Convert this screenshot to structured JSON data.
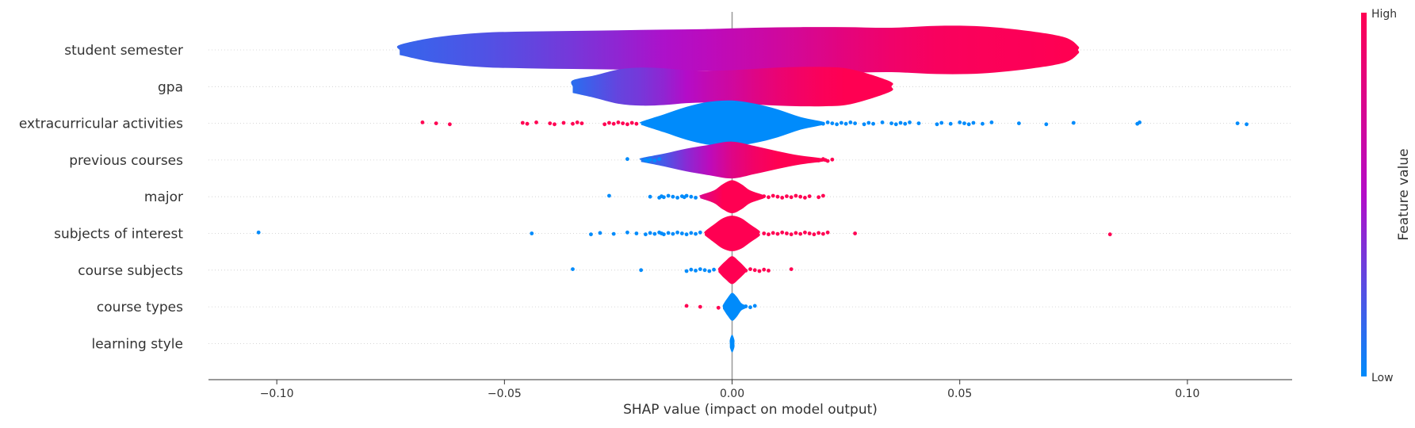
{
  "chart_data": {
    "type": "scatter",
    "variant": "shap-violin-summary",
    "title": "",
    "xlabel": "SHAP value (impact on model output)",
    "xlim": [
      -0.115,
      0.123
    ],
    "xticks": [
      -0.1,
      -0.05,
      0.0,
      0.05,
      0.1
    ],
    "xtick_labels": [
      "−0.10",
      "−0.05",
      "0.00",
      "0.05",
      "0.10"
    ],
    "zero_line": 0.0,
    "colorbar": {
      "label": "Feature value",
      "high_label": "High",
      "low_label": "Low",
      "low_color": "#008bfb",
      "high_color": "#ff0052"
    },
    "features": [
      {
        "name": "student semester",
        "kind": "violin",
        "violin": [
          [
            -0.073,
            0.4,
            0.15
          ],
          [
            -0.065,
            1.0,
            0.18
          ],
          [
            -0.055,
            1.35,
            0.22
          ],
          [
            -0.045,
            1.45,
            0.27
          ],
          [
            -0.035,
            1.5,
            0.33
          ],
          [
            -0.025,
            1.55,
            0.4
          ],
          [
            -0.015,
            1.6,
            0.48
          ],
          [
            -0.005,
            1.65,
            0.55
          ],
          [
            0.005,
            1.75,
            0.63
          ],
          [
            0.015,
            1.8,
            0.72
          ],
          [
            0.025,
            1.8,
            0.82
          ],
          [
            0.035,
            1.75,
            0.9
          ],
          [
            0.045,
            1.9,
            0.95
          ],
          [
            0.055,
            1.85,
            0.97
          ],
          [
            0.065,
            1.5,
            0.98
          ],
          [
            0.073,
            1.0,
            1.0
          ],
          [
            0.076,
            0.3,
            1.0
          ]
        ],
        "dots": []
      },
      {
        "name": "gpa",
        "kind": "violin",
        "violin": [
          [
            -0.035,
            0.5,
            0.12
          ],
          [
            -0.03,
            0.9,
            0.2
          ],
          [
            -0.025,
            1.35,
            0.28
          ],
          [
            -0.02,
            1.5,
            0.33
          ],
          [
            -0.015,
            1.45,
            0.4
          ],
          [
            -0.01,
            1.3,
            0.5
          ],
          [
            -0.005,
            1.25,
            0.6
          ],
          [
            0.0,
            1.3,
            0.68
          ],
          [
            0.005,
            1.4,
            0.78
          ],
          [
            0.01,
            1.5,
            0.86
          ],
          [
            0.015,
            1.55,
            0.92
          ],
          [
            0.02,
            1.55,
            0.97
          ],
          [
            0.025,
            1.45,
            1.0
          ],
          [
            0.03,
            1.0,
            1.0
          ],
          [
            0.035,
            0.35,
            1.0
          ]
        ],
        "dots": []
      },
      {
        "name": "extracurricular activities",
        "kind": "violin",
        "violin": [
          [
            -0.02,
            0.12,
            0.0
          ],
          [
            -0.015,
            0.7,
            0.0
          ],
          [
            -0.01,
            1.3,
            0.0
          ],
          [
            -0.005,
            1.7,
            0.0
          ],
          [
            0.0,
            1.8,
            0.0
          ],
          [
            0.005,
            1.55,
            0.0
          ],
          [
            0.01,
            1.1,
            0.0
          ],
          [
            0.015,
            0.5,
            0.0
          ],
          [
            0.02,
            0.12,
            0.0
          ]
        ],
        "dots": [
          [
            -0.068,
            1
          ],
          [
            -0.065,
            1
          ],
          [
            -0.062,
            1
          ],
          [
            -0.046,
            1
          ],
          [
            -0.045,
            1
          ],
          [
            -0.043,
            1
          ],
          [
            -0.04,
            1
          ],
          [
            -0.039,
            1
          ],
          [
            -0.037,
            1
          ],
          [
            -0.035,
            1
          ],
          [
            -0.034,
            1
          ],
          [
            -0.033,
            1
          ],
          [
            -0.028,
            1
          ],
          [
            -0.027,
            1
          ],
          [
            -0.026,
            1
          ],
          [
            -0.025,
            1
          ],
          [
            -0.024,
            1
          ],
          [
            -0.023,
            1
          ],
          [
            -0.022,
            1
          ],
          [
            -0.021,
            1
          ],
          [
            0.016,
            0
          ],
          [
            0.017,
            0
          ],
          [
            0.018,
            0
          ],
          [
            0.019,
            0
          ],
          [
            0.02,
            0
          ],
          [
            0.021,
            0
          ],
          [
            0.022,
            0
          ],
          [
            0.023,
            0
          ],
          [
            0.024,
            0
          ],
          [
            0.025,
            0
          ],
          [
            0.026,
            0
          ],
          [
            0.027,
            0
          ],
          [
            0.029,
            0
          ],
          [
            0.03,
            0
          ],
          [
            0.031,
            0
          ],
          [
            0.033,
            0
          ],
          [
            0.035,
            0
          ],
          [
            0.036,
            0
          ],
          [
            0.037,
            0
          ],
          [
            0.038,
            0
          ],
          [
            0.039,
            0
          ],
          [
            0.041,
            0
          ],
          [
            0.045,
            0
          ],
          [
            0.046,
            0
          ],
          [
            0.048,
            0
          ],
          [
            0.05,
            0
          ],
          [
            0.051,
            0
          ],
          [
            0.052,
            0
          ],
          [
            0.053,
            0
          ],
          [
            0.055,
            0
          ],
          [
            0.057,
            0
          ],
          [
            0.063,
            0
          ],
          [
            0.069,
            0
          ],
          [
            0.075,
            0
          ],
          [
            0.089,
            0
          ],
          [
            0.0895,
            0
          ],
          [
            0.111,
            0
          ],
          [
            0.113,
            0
          ]
        ]
      },
      {
        "name": "previous courses",
        "kind": "violin",
        "violin": [
          [
            -0.02,
            0.15,
            0.08
          ],
          [
            -0.015,
            0.5,
            0.2
          ],
          [
            -0.01,
            0.9,
            0.38
          ],
          [
            -0.005,
            1.2,
            0.55
          ],
          [
            0.0,
            1.45,
            0.78
          ],
          [
            0.005,
            1.1,
            0.92
          ],
          [
            0.01,
            0.7,
            1.0
          ],
          [
            0.015,
            0.35,
            1.0
          ],
          [
            0.02,
            0.12,
            1.0
          ]
        ],
        "dots": [
          [
            -0.023,
            0
          ],
          [
            -0.019,
            0
          ],
          [
            -0.0185,
            0
          ],
          [
            -0.018,
            0
          ],
          [
            -0.017,
            0
          ],
          [
            -0.016,
            0
          ],
          [
            0.016,
            1
          ],
          [
            0.017,
            1
          ],
          [
            0.018,
            1
          ],
          [
            0.019,
            1
          ],
          [
            0.02,
            1
          ],
          [
            0.0205,
            1
          ],
          [
            0.021,
            1
          ],
          [
            0.022,
            1
          ]
        ]
      },
      {
        "name": "major",
        "kind": "violin",
        "violin": [
          [
            -0.007,
            0.12,
            0.75
          ],
          [
            -0.004,
            0.5,
            0.9
          ],
          [
            -0.002,
            1.0,
            1.0
          ],
          [
            0.0,
            1.3,
            1.0
          ],
          [
            0.002,
            1.0,
            1.0
          ],
          [
            0.004,
            0.5,
            1.0
          ],
          [
            0.007,
            0.12,
            1.0
          ]
        ],
        "dots": [
          [
            -0.027,
            0
          ],
          [
            -0.018,
            0
          ],
          [
            -0.016,
            0
          ],
          [
            -0.0155,
            0
          ],
          [
            -0.015,
            0
          ],
          [
            -0.014,
            0
          ],
          [
            -0.013,
            0
          ],
          [
            -0.012,
            0
          ],
          [
            -0.011,
            0
          ],
          [
            -0.0105,
            0
          ],
          [
            -0.01,
            0
          ],
          [
            -0.009,
            0
          ],
          [
            -0.008,
            0
          ],
          [
            0.007,
            1
          ],
          [
            0.008,
            1
          ],
          [
            0.009,
            1
          ],
          [
            0.01,
            1
          ],
          [
            0.011,
            1
          ],
          [
            0.012,
            1
          ],
          [
            0.013,
            1
          ],
          [
            0.014,
            1
          ],
          [
            0.015,
            1
          ],
          [
            0.016,
            1
          ],
          [
            0.017,
            1
          ],
          [
            0.019,
            1
          ],
          [
            0.02,
            1
          ]
        ]
      },
      {
        "name": "subjects of interest",
        "kind": "violin",
        "violin": [
          [
            -0.006,
            0.15,
            1.0
          ],
          [
            -0.004,
            0.7,
            1.0
          ],
          [
            -0.002,
            1.2,
            1.0
          ],
          [
            0.0,
            1.4,
            1.0
          ],
          [
            0.002,
            1.2,
            1.0
          ],
          [
            0.004,
            0.7,
            1.0
          ],
          [
            0.006,
            0.2,
            1.0
          ]
        ],
        "dots": [
          [
            -0.104,
            0
          ],
          [
            -0.044,
            0
          ],
          [
            -0.031,
            0
          ],
          [
            -0.029,
            0
          ],
          [
            -0.026,
            0
          ],
          [
            -0.023,
            0
          ],
          [
            -0.021,
            0
          ],
          [
            -0.019,
            0
          ],
          [
            -0.018,
            0
          ],
          [
            -0.017,
            0
          ],
          [
            -0.016,
            0
          ],
          [
            -0.0155,
            0
          ],
          [
            -0.015,
            0
          ],
          [
            -0.014,
            0
          ],
          [
            -0.013,
            0
          ],
          [
            -0.012,
            0
          ],
          [
            -0.011,
            0
          ],
          [
            -0.01,
            0
          ],
          [
            -0.009,
            0
          ],
          [
            -0.008,
            0
          ],
          [
            -0.007,
            0
          ],
          [
            0.007,
            1
          ],
          [
            0.008,
            1
          ],
          [
            0.009,
            1
          ],
          [
            0.01,
            1
          ],
          [
            0.011,
            1
          ],
          [
            0.012,
            1
          ],
          [
            0.013,
            1
          ],
          [
            0.014,
            1
          ],
          [
            0.015,
            1
          ],
          [
            0.016,
            1
          ],
          [
            0.017,
            1
          ],
          [
            0.018,
            1
          ],
          [
            0.019,
            1
          ],
          [
            0.02,
            1
          ],
          [
            0.021,
            1
          ],
          [
            0.027,
            1
          ],
          [
            0.083,
            1
          ]
        ]
      },
      {
        "name": "course subjects",
        "kind": "violin",
        "violin": [
          [
            -0.003,
            0.15,
            1.0
          ],
          [
            -0.0015,
            0.7,
            1.0
          ],
          [
            0.0,
            1.1,
            1.0
          ],
          [
            0.0015,
            0.7,
            1.0
          ],
          [
            0.003,
            0.15,
            1.0
          ]
        ],
        "dots": [
          [
            -0.035,
            0
          ],
          [
            -0.02,
            0
          ],
          [
            -0.01,
            0
          ],
          [
            -0.009,
            0
          ],
          [
            -0.008,
            0
          ],
          [
            -0.007,
            0
          ],
          [
            -0.006,
            0
          ],
          [
            -0.005,
            0
          ],
          [
            -0.004,
            0
          ],
          [
            0.003,
            1
          ],
          [
            0.004,
            1
          ],
          [
            0.005,
            1
          ],
          [
            0.006,
            1
          ],
          [
            0.007,
            1
          ],
          [
            0.008,
            1
          ],
          [
            0.013,
            1
          ]
        ]
      },
      {
        "name": "course types",
        "kind": "violin",
        "violin": [
          [
            -0.002,
            0.15,
            0.0
          ],
          [
            -0.001,
            0.7,
            0.0
          ],
          [
            0.0,
            1.1,
            0.0
          ],
          [
            0.001,
            0.8,
            0.0
          ],
          [
            0.002,
            0.3,
            0.0
          ],
          [
            0.003,
            0.1,
            0.0
          ]
        ],
        "dots": [
          [
            -0.01,
            1
          ],
          [
            -0.007,
            1
          ],
          [
            -0.003,
            1
          ],
          [
            0.003,
            0
          ],
          [
            0.004,
            0
          ],
          [
            0.005,
            0
          ]
        ]
      },
      {
        "name": "learning style",
        "kind": "violin",
        "violin": [
          [
            -0.0005,
            0.3,
            0.0
          ],
          [
            0.0,
            0.7,
            0.0
          ],
          [
            0.0005,
            0.3,
            0.0
          ]
        ],
        "dots": []
      }
    ]
  }
}
